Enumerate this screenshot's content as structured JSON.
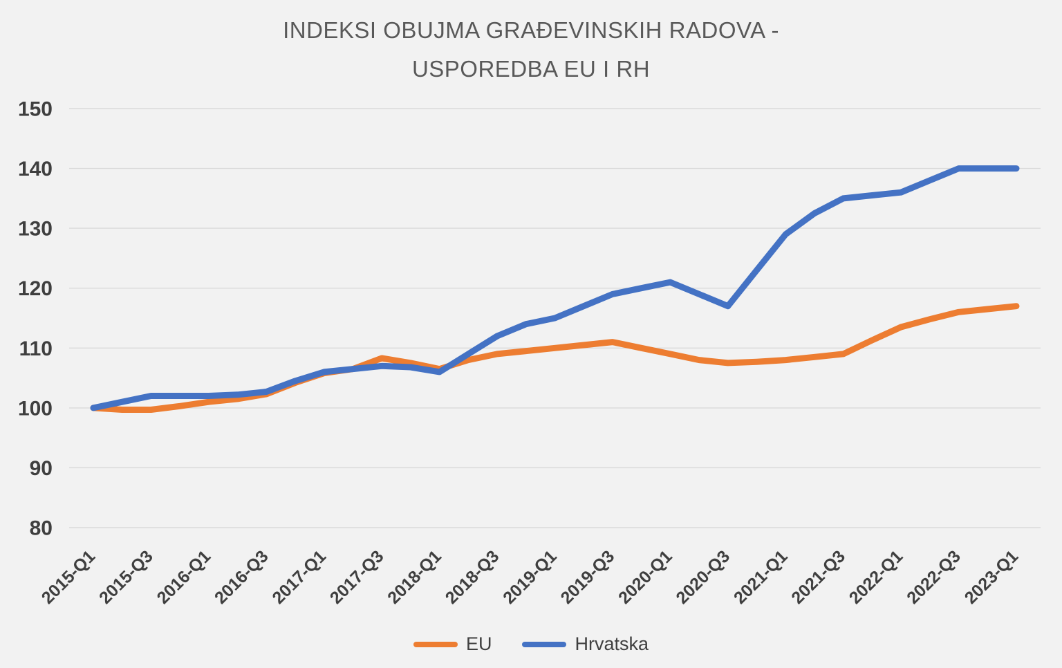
{
  "chart_data": {
    "type": "line",
    "title": "INDEKSI OBUJMA GRAĐEVINSKIH RADOVA - USPOREDBA EU I RH",
    "title_lines": [
      "INDEKSI OBUJMA GRAĐEVINSKIH RADOVA -",
      "USPOREDBA EU I RH"
    ],
    "x": [
      "2015-Q1",
      "2015-Q2",
      "2015-Q3",
      "2015-Q4",
      "2016-Q1",
      "2016-Q2",
      "2016-Q3",
      "2016-Q4",
      "2017-Q1",
      "2017-Q2",
      "2017-Q3",
      "2017-Q4",
      "2018-Q1",
      "2018-Q2",
      "2018-Q3",
      "2018-Q4",
      "2019-Q1",
      "2019-Q2",
      "2019-Q3",
      "2019-Q4",
      "2020-Q1",
      "2020-Q2",
      "2020-Q3",
      "2020-Q4",
      "2021-Q1",
      "2021-Q2",
      "2021-Q3",
      "2021-Q4",
      "2022-Q1",
      "2022-Q2",
      "2022-Q3",
      "2022-Q4",
      "2023-Q1"
    ],
    "x_tick_labels": [
      "2015-Q1",
      "2015-Q3",
      "2016-Q1",
      "2016-Q3",
      "2017-Q1",
      "2017-Q3",
      "2018-Q1",
      "2018-Q3",
      "2019-Q1",
      "2019-Q3",
      "2020-Q1",
      "2020-Q3",
      "2021-Q1",
      "2021-Q3",
      "2022-Q1",
      "2022-Q3",
      "2023-Q1"
    ],
    "yticks": [
      80,
      90,
      100,
      110,
      120,
      130,
      140,
      150
    ],
    "ylim": [
      80,
      150
    ],
    "grid": "horizontal",
    "legend_position": "bottom",
    "series": [
      {
        "name": "EU",
        "color": "#ED7D31",
        "values": [
          100,
          99.7,
          99.7,
          100.3,
          101,
          101.5,
          102.3,
          104.2,
          105.8,
          106.5,
          108.3,
          107.5,
          106.5,
          108,
          109,
          109.5,
          110,
          110.5,
          111,
          110,
          109,
          108,
          107.5,
          107.7,
          108,
          108.5,
          109,
          111.3,
          113.5,
          114.8,
          116,
          116.5,
          117
        ]
      },
      {
        "name": "Hrvatska",
        "color": "#4472C4",
        "values": [
          100,
          101,
          102,
          102,
          102,
          102.2,
          102.7,
          104.5,
          106,
          106.5,
          107,
          106.8,
          106,
          109,
          112,
          114,
          115,
          117,
          119,
          120,
          121,
          119,
          117,
          123,
          129,
          132.5,
          135,
          135.5,
          136,
          138,
          140,
          140,
          140
        ]
      }
    ],
    "colors": {
      "background": "#F2F2F2",
      "gridline": "#D9D9D9",
      "axis_text": "#3F3F3F",
      "title_text": "#595959",
      "legend_text": "#404040"
    }
  }
}
